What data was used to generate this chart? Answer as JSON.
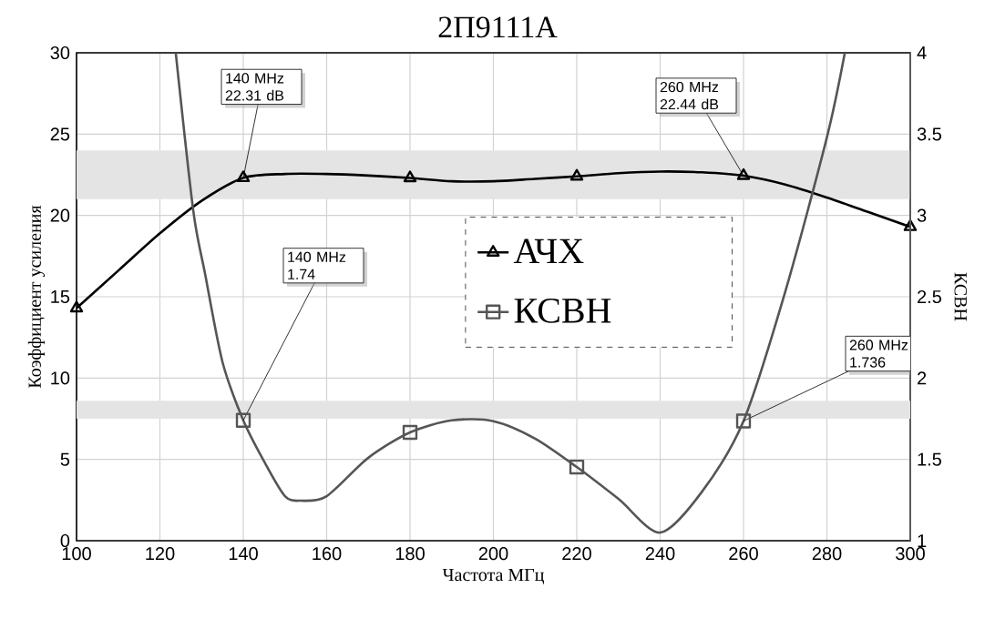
{
  "chart_data": {
    "type": "line",
    "title": "2П9111А",
    "xlabel": "Частота МГц",
    "ylabel": "Коэффициент усиления",
    "y2label": "КСВН",
    "xlim": [
      100,
      300
    ],
    "xticks": [
      100,
      120,
      140,
      160,
      180,
      200,
      220,
      240,
      260,
      280,
      300
    ],
    "ylim": [
      0,
      30
    ],
    "yticks": [
      0,
      5,
      10,
      15,
      20,
      25,
      30
    ],
    "y2lim": [
      1,
      4
    ],
    "y2ticks": [
      1,
      1.5,
      2,
      2.5,
      3,
      3.5,
      4
    ],
    "grid": true,
    "legend": "center",
    "series": [
      {
        "name": "АЧХ",
        "color": "#000000",
        "marker": "none",
        "x": [
          100,
          110,
          120,
          130,
          140,
          150,
          160,
          170,
          180,
          190,
          200,
          210,
          220,
          230,
          240,
          250,
          260,
          270,
          280,
          290,
          300
        ],
        "values": [
          14.3,
          16.6,
          18.9,
          20.9,
          22.31,
          22.55,
          22.55,
          22.45,
          22.3,
          22.1,
          22.1,
          22.25,
          22.4,
          22.6,
          22.7,
          22.65,
          22.44,
          21.9,
          21.1,
          20.2,
          19.3
        ]
      },
      {
        "type": "scatter",
        "color": "#000000",
        "marker": "triangle",
        "x": [
          100,
          140,
          180,
          220,
          260,
          300
        ],
        "values": [
          14.3,
          22.31,
          22.3,
          22.4,
          22.44,
          19.3
        ],
        "value_labels": [
          null,
          "140 MHz 22.31 dB",
          null,
          null,
          "260 MHz 22.44 dB",
          null
        ]
      },
      {
        "name": "КСВН",
        "color": "#555555",
        "marker": "none",
        "axis": "y2",
        "x": [
          123.8,
          128,
          130.8,
          135,
          140,
          145,
          150,
          153.8,
          160,
          170,
          180,
          190,
          200,
          210,
          220,
          230,
          240,
          250,
          260,
          270,
          280,
          284.3
        ],
        "values": [
          4,
          3.03,
          2.645,
          2.1,
          1.74,
          1.487,
          1.274,
          1.246,
          1.274,
          1.51,
          1.666,
          1.74,
          1.735,
          1.628,
          1.453,
          1.257,
          1.05,
          1.3,
          1.736,
          2.53,
          3.48,
          4
        ]
      },
      {
        "type": "scatter",
        "color": "#555555",
        "marker": "square",
        "axis": "y2",
        "x": [
          140,
          180,
          220,
          260
        ],
        "values": [
          1.74,
          1.666,
          1.453,
          1.736
        ],
        "value_labels": [
          "140 MHz 1.74",
          null,
          null,
          "260 MHz 1.736"
        ]
      }
    ],
    "bands": [
      {
        "axis": "y",
        "from": 21,
        "to": 24,
        "color": "#e4e4e4"
      },
      {
        "axis": "y2",
        "from": 1.75,
        "to": 1.86,
        "color": "#e4e4e4"
      }
    ]
  }
}
